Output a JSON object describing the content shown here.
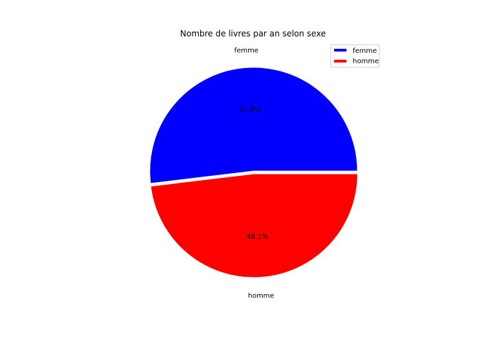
{
  "chart_data": {
    "type": "pie",
    "title": "Nombre de livres par an selon sexe",
    "slices": [
      {
        "label": "femme",
        "percent": 51.9,
        "pct_label": "51.9%",
        "color": "#0000ff"
      },
      {
        "label": "homme",
        "percent": 48.1,
        "pct_label": "48.1%",
        "color": "#ff0000"
      }
    ],
    "start_angle_deg": 0,
    "direction": "counterclockwise",
    "legend": {
      "position": "top-right",
      "entries": [
        {
          "label": "femme",
          "color": "#0000ff"
        },
        {
          "label": "homme",
          "color": "#ff0000"
        }
      ]
    }
  }
}
